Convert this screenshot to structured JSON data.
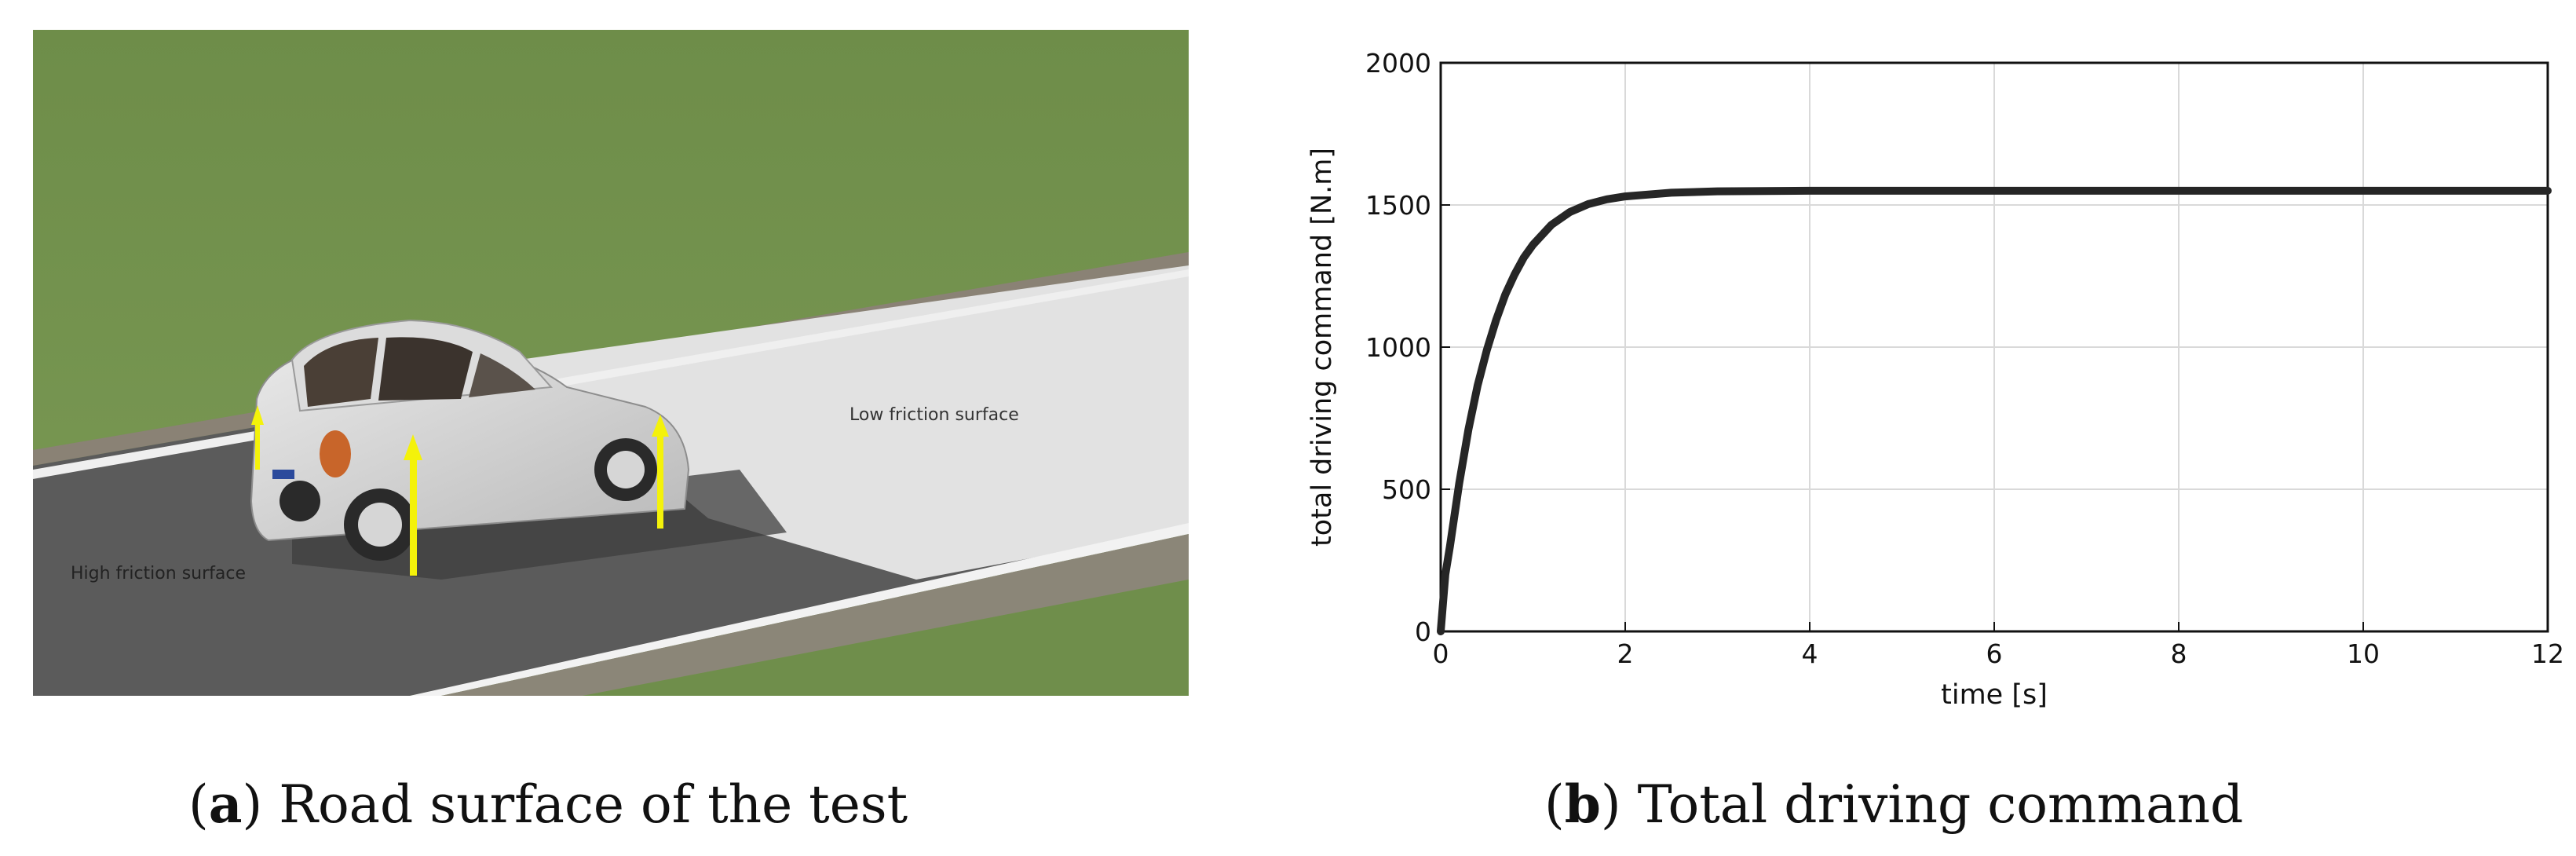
{
  "scene": {
    "low_label": "Low friction surface",
    "high_label": "High friction surface"
  },
  "captions": {
    "a_letter": "a",
    "a_text": "Road surface of the test",
    "b_letter": "b",
    "b_text": "Total driving command"
  },
  "colors": {
    "line": "#262626",
    "grid": "#d9d9d9",
    "axis": "#111111",
    "grass": "#71904c",
    "asphalt": "#5c5c5c",
    "low_surface": "#e3e3e3",
    "arrow": "#f4f20a"
  },
  "chart_data": {
    "type": "line",
    "xlabel": "time [s]",
    "ylabel": "total driving command [N.m]",
    "xlim": [
      0,
      12
    ],
    "ylim": [
      0,
      2000
    ],
    "xticks": [
      0,
      2,
      4,
      6,
      8,
      10,
      12
    ],
    "yticks": [
      0,
      500,
      1000,
      1500,
      2000
    ],
    "grid": true,
    "series": [
      {
        "x": [
          0,
          0.05,
          0.1,
          0.2,
          0.3,
          0.4,
          0.5,
          0.6,
          0.7,
          0.8,
          0.9,
          1.0,
          1.2,
          1.4,
          1.6,
          1.8,
          2.0,
          2.5,
          3.0,
          4.0,
          6.0,
          8.0,
          10.0,
          12.0
        ],
        "y": [
          0,
          200,
          300,
          520,
          710,
          865,
          990,
          1095,
          1185,
          1255,
          1315,
          1360,
          1430,
          1475,
          1503,
          1520,
          1530,
          1543,
          1548,
          1550,
          1550,
          1550,
          1550,
          1550
        ]
      }
    ]
  }
}
